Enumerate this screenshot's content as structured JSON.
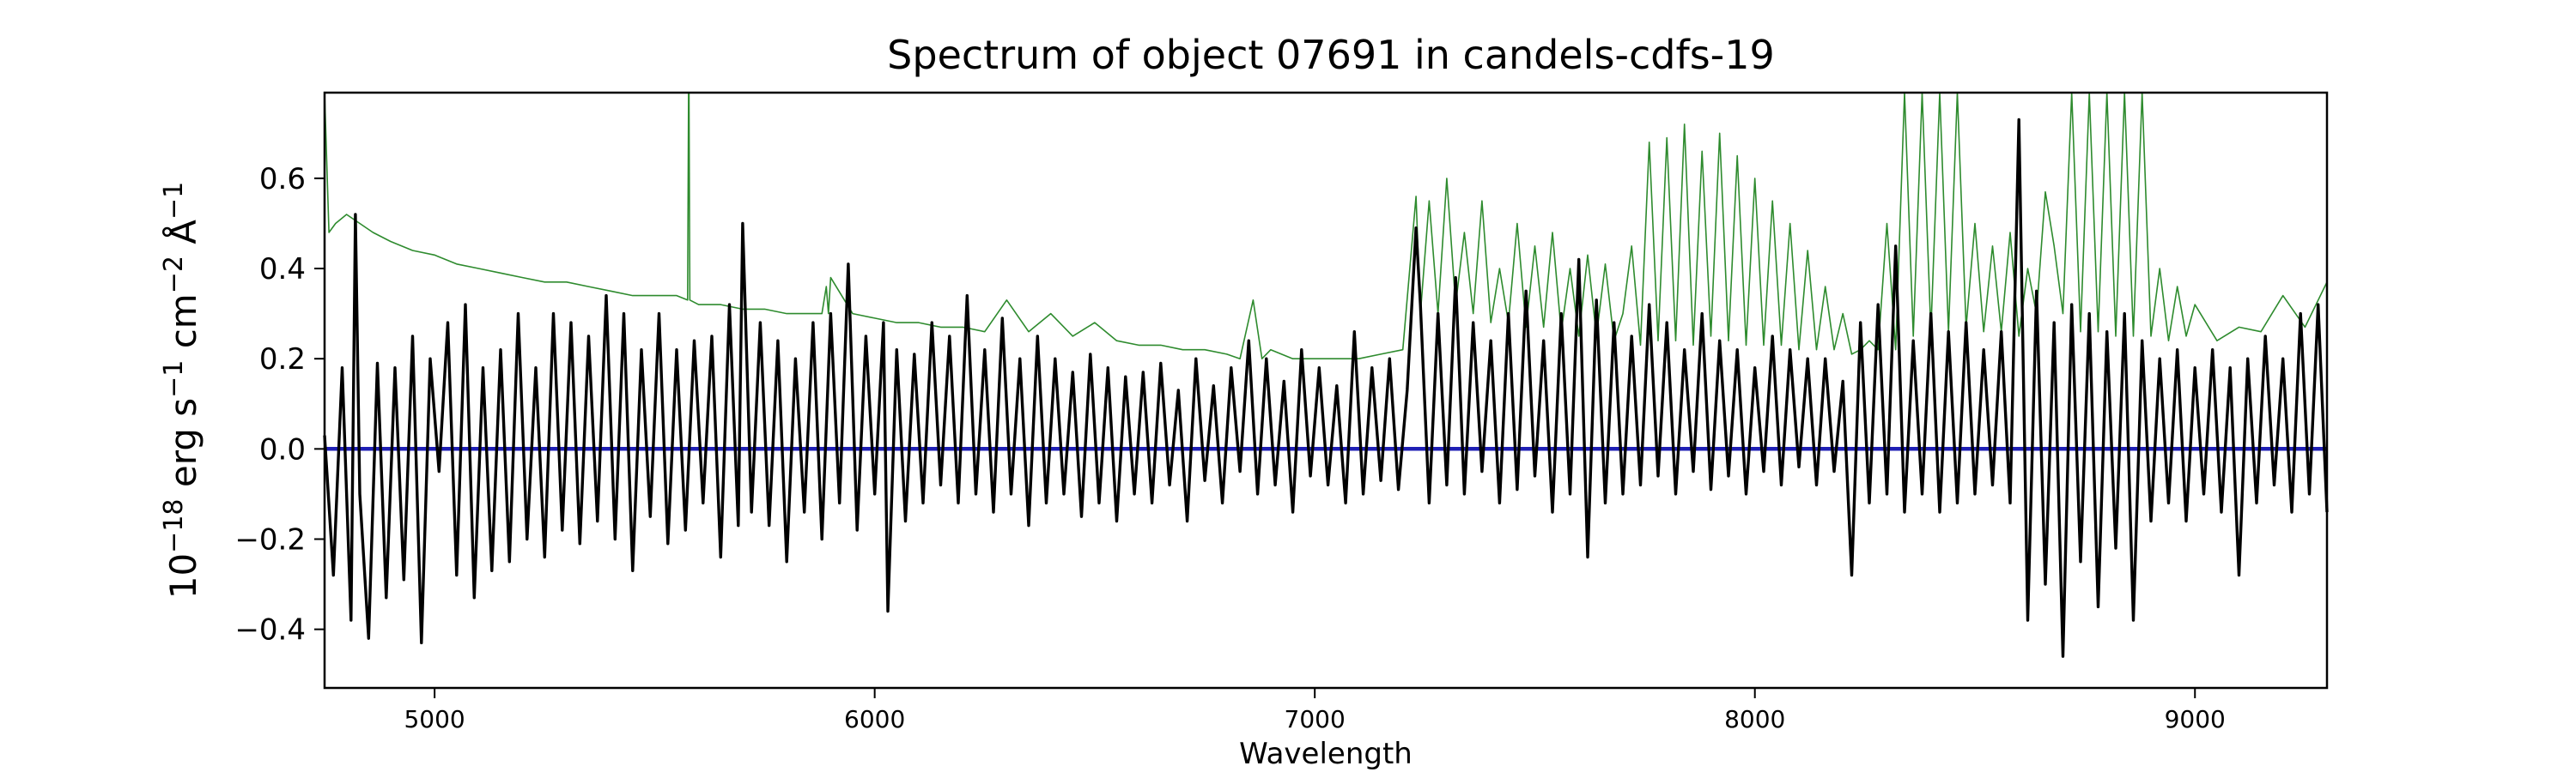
{
  "chart_data": {
    "type": "line",
    "title": "Spectrum of object 07691 in candels-cdfs-19",
    "xlabel": "Wavelength",
    "ylabel_parts": {
      "base": "10",
      "exp1": "−18",
      "unit1": " erg s",
      "exp2": "−1",
      "unit2": " cm",
      "exp3": "−2",
      "unit3": " Å",
      "exp4": "−1"
    },
    "xlim": [
      4750,
      9300
    ],
    "ylim": [
      -0.53,
      0.79
    ],
    "xticks": [
      5000,
      6000,
      7000,
      8000,
      9000
    ],
    "yticks": [
      -0.4,
      -0.2,
      0.0,
      0.2,
      0.4,
      0.6
    ],
    "ytick_labels": [
      "−0.4",
      "−0.2",
      "0.0",
      "0.2",
      "0.4",
      "0.6"
    ],
    "xtick_labels": [
      "5000",
      "6000",
      "7000",
      "8000",
      "9000"
    ],
    "grid": false,
    "series": [
      {
        "role": "error",
        "color": "#2e8b2e",
        "x": [
          4750,
          4760,
          4775,
          4800,
          4830,
          4860,
          4900,
          4950,
          5000,
          5050,
          5100,
          5150,
          5200,
          5250,
          5300,
          5350,
          5400,
          5450,
          5500,
          5550,
          5575,
          5577,
          5578,
          5580,
          5600,
          5650,
          5700,
          5750,
          5800,
          5850,
          5880,
          5890,
          5895,
          5900,
          5950,
          6000,
          6050,
          6100,
          6150,
          6200,
          6250,
          6300,
          6350,
          6400,
          6450,
          6500,
          6550,
          6600,
          6650,
          6700,
          6750,
          6800,
          6830,
          6860,
          6880,
          6900,
          6950,
          7000,
          7050,
          7100,
          7150,
          7200,
          7230,
          7240,
          7260,
          7280,
          7300,
          7320,
          7340,
          7360,
          7380,
          7400,
          7420,
          7440,
          7460,
          7480,
          7500,
          7520,
          7540,
          7560,
          7580,
          7600,
          7620,
          7640,
          7660,
          7680,
          7700,
          7720,
          7740,
          7760,
          7780,
          7800,
          7820,
          7840,
          7860,
          7880,
          7900,
          7920,
          7940,
          7960,
          7980,
          8000,
          8020,
          8040,
          8060,
          8080,
          8100,
          8120,
          8140,
          8160,
          8180,
          8200,
          8220,
          8240,
          8260,
          8280,
          8300,
          8320,
          8340,
          8360,
          8380,
          8400,
          8420,
          8440,
          8460,
          8480,
          8500,
          8520,
          8540,
          8560,
          8580,
          8600,
          8620,
          8640,
          8660,
          8680,
          8700,
          8720,
          8740,
          8760,
          8780,
          8800,
          8820,
          8840,
          8860,
          8880,
          8900,
          8920,
          8940,
          8960,
          8980,
          9000,
          9050,
          9100,
          9150,
          9200,
          9250,
          9300
        ],
        "y": [
          0.79,
          0.48,
          0.5,
          0.52,
          0.5,
          0.48,
          0.46,
          0.44,
          0.43,
          0.41,
          0.4,
          0.39,
          0.38,
          0.37,
          0.37,
          0.36,
          0.35,
          0.34,
          0.34,
          0.34,
          0.33,
          0.79,
          0.79,
          0.33,
          0.32,
          0.32,
          0.31,
          0.31,
          0.3,
          0.3,
          0.3,
          0.36,
          0.3,
          0.38,
          0.3,
          0.29,
          0.28,
          0.28,
          0.27,
          0.27,
          0.26,
          0.33,
          0.26,
          0.3,
          0.25,
          0.28,
          0.24,
          0.23,
          0.23,
          0.22,
          0.22,
          0.21,
          0.2,
          0.33,
          0.2,
          0.22,
          0.2,
          0.2,
          0.2,
          0.2,
          0.21,
          0.22,
          0.56,
          0.3,
          0.55,
          0.3,
          0.6,
          0.32,
          0.48,
          0.3,
          0.55,
          0.28,
          0.4,
          0.28,
          0.5,
          0.27,
          0.45,
          0.27,
          0.48,
          0.26,
          0.4,
          0.25,
          0.43,
          0.25,
          0.41,
          0.24,
          0.3,
          0.45,
          0.23,
          0.68,
          0.24,
          0.69,
          0.24,
          0.72,
          0.23,
          0.66,
          0.25,
          0.7,
          0.24,
          0.65,
          0.23,
          0.6,
          0.23,
          0.55,
          0.23,
          0.5,
          0.22,
          0.44,
          0.22,
          0.36,
          0.22,
          0.3,
          0.21,
          0.22,
          0.24,
          0.22,
          0.5,
          0.22,
          0.79,
          0.25,
          0.79,
          0.26,
          0.79,
          0.26,
          0.79,
          0.27,
          0.5,
          0.26,
          0.45,
          0.26,
          0.48,
          0.25,
          0.4,
          0.3,
          0.57,
          0.45,
          0.3,
          0.79,
          0.26,
          0.79,
          0.26,
          0.79,
          0.25,
          0.79,
          0.25,
          0.79,
          0.25,
          0.4,
          0.24,
          0.36,
          0.25,
          0.32,
          0.24,
          0.27,
          0.26,
          0.34,
          0.27,
          0.37
        ]
      },
      {
        "role": "model",
        "color": "#1f1fb4",
        "x": [
          4750,
          9300
        ],
        "y": [
          0.0,
          0.0
        ]
      },
      {
        "role": "flux",
        "color": "#000000",
        "x": [
          4750,
          4770,
          4790,
          4810,
          4820,
          4830,
          4850,
          4870,
          4890,
          4910,
          4930,
          4950,
          4970,
          4990,
          5010,
          5030,
          5050,
          5070,
          5090,
          5110,
          5130,
          5150,
          5170,
          5190,
          5210,
          5230,
          5250,
          5270,
          5290,
          5310,
          5330,
          5350,
          5370,
          5390,
          5410,
          5430,
          5450,
          5470,
          5490,
          5510,
          5530,
          5550,
          5570,
          5590,
          5610,
          5630,
          5650,
          5670,
          5690,
          5700,
          5720,
          5740,
          5760,
          5780,
          5800,
          5820,
          5840,
          5860,
          5880,
          5900,
          5920,
          5940,
          5960,
          5980,
          6000,
          6020,
          6030,
          6050,
          6070,
          6090,
          6110,
          6130,
          6150,
          6170,
          6190,
          6210,
          6230,
          6250,
          6270,
          6290,
          6310,
          6330,
          6350,
          6370,
          6390,
          6410,
          6430,
          6450,
          6470,
          6490,
          6510,
          6530,
          6550,
          6570,
          6590,
          6610,
          6630,
          6650,
          6670,
          6690,
          6710,
          6730,
          6750,
          6770,
          6790,
          6810,
          6830,
          6850,
          6870,
          6890,
          6910,
          6930,
          6950,
          6970,
          6990,
          7010,
          7030,
          7050,
          7070,
          7090,
          7110,
          7130,
          7150,
          7170,
          7190,
          7210,
          7230,
          7240,
          7260,
          7280,
          7300,
          7320,
          7340,
          7360,
          7380,
          7400,
          7420,
          7440,
          7460,
          7480,
          7500,
          7520,
          7540,
          7560,
          7580,
          7600,
          7620,
          7640,
          7660,
          7680,
          7700,
          7720,
          7740,
          7760,
          7780,
          7800,
          7820,
          7840,
          7860,
          7880,
          7900,
          7920,
          7940,
          7960,
          7980,
          8000,
          8020,
          8040,
          8060,
          8080,
          8100,
          8120,
          8140,
          8160,
          8180,
          8200,
          8220,
          8240,
          8260,
          8280,
          8300,
          8320,
          8340,
          8360,
          8380,
          8400,
          8420,
          8440,
          8460,
          8480,
          8500,
          8520,
          8540,
          8560,
          8580,
          8600,
          8620,
          8640,
          8660,
          8680,
          8700,
          8720,
          8740,
          8760,
          8780,
          8800,
          8820,
          8840,
          8860,
          8880,
          8900,
          8920,
          8940,
          8960,
          8980,
          9000,
          9020,
          9040,
          9060,
          9080,
          9100,
          9120,
          9140,
          9160,
          9180,
          9200,
          9220,
          9240,
          9260,
          9280,
          9300
        ],
        "y": [
          0.03,
          -0.28,
          0.18,
          -0.38,
          0.52,
          -0.1,
          -0.42,
          0.19,
          -0.33,
          0.18,
          -0.29,
          0.25,
          -0.43,
          0.2,
          -0.05,
          0.28,
          -0.28,
          0.32,
          -0.33,
          0.18,
          -0.27,
          0.22,
          -0.25,
          0.3,
          -0.2,
          0.18,
          -0.24,
          0.3,
          -0.18,
          0.28,
          -0.21,
          0.25,
          -0.16,
          0.34,
          -0.2,
          0.3,
          -0.27,
          0.22,
          -0.15,
          0.3,
          -0.21,
          0.22,
          -0.18,
          0.24,
          -0.12,
          0.25,
          -0.24,
          0.32,
          -0.17,
          0.5,
          -0.14,
          0.28,
          -0.17,
          0.24,
          -0.25,
          0.2,
          -0.14,
          0.28,
          -0.2,
          0.3,
          -0.12,
          0.41,
          -0.18,
          0.25,
          -0.1,
          0.28,
          -0.36,
          0.22,
          -0.16,
          0.21,
          -0.12,
          0.28,
          -0.08,
          0.25,
          -0.12,
          0.34,
          -0.1,
          0.22,
          -0.14,
          0.29,
          -0.1,
          0.2,
          -0.17,
          0.25,
          -0.12,
          0.2,
          -0.1,
          0.17,
          -0.15,
          0.21,
          -0.12,
          0.18,
          -0.16,
          0.16,
          -0.1,
          0.17,
          -0.12,
          0.19,
          -0.08,
          0.13,
          -0.16,
          0.2,
          -0.07,
          0.14,
          -0.12,
          0.18,
          -0.05,
          0.24,
          -0.1,
          0.2,
          -0.08,
          0.15,
          -0.14,
          0.22,
          -0.06,
          0.18,
          -0.08,
          0.14,
          -0.12,
          0.26,
          -0.1,
          0.18,
          -0.07,
          0.2,
          -0.09,
          0.13,
          0.49,
          0.32,
          -0.12,
          0.3,
          -0.08,
          0.38,
          -0.1,
          0.28,
          -0.05,
          0.24,
          -0.12,
          0.3,
          -0.09,
          0.35,
          -0.06,
          0.24,
          -0.14,
          0.3,
          -0.1,
          0.42,
          -0.24,
          0.33,
          -0.12,
          0.28,
          -0.1,
          0.25,
          -0.08,
          0.32,
          -0.06,
          0.28,
          -0.1,
          0.22,
          -0.05,
          0.3,
          -0.09,
          0.24,
          -0.06,
          0.22,
          -0.1,
          0.18,
          -0.05,
          0.25,
          -0.08,
          0.22,
          -0.04,
          0.2,
          -0.08,
          0.2,
          -0.05,
          0.15,
          -0.28,
          0.28,
          -0.12,
          0.32,
          -0.1,
          0.45,
          -0.14,
          0.24,
          -0.1,
          0.3,
          -0.14,
          0.26,
          -0.12,
          0.28,
          -0.1,
          0.22,
          -0.08,
          0.26,
          -0.12,
          0.73,
          -0.38,
          0.35,
          -0.3,
          0.28,
          -0.46,
          0.32,
          -0.25,
          0.3,
          -0.35,
          0.26,
          -0.22,
          0.3,
          -0.38,
          0.24,
          -0.16,
          0.2,
          -0.12,
          0.22,
          -0.16,
          0.18,
          -0.1,
          0.22,
          -0.14,
          0.18,
          -0.28,
          0.2,
          -0.12,
          0.25,
          -0.08,
          0.2,
          -0.14,
          0.3,
          -0.1,
          0.32,
          -0.14
        ]
      }
    ]
  }
}
